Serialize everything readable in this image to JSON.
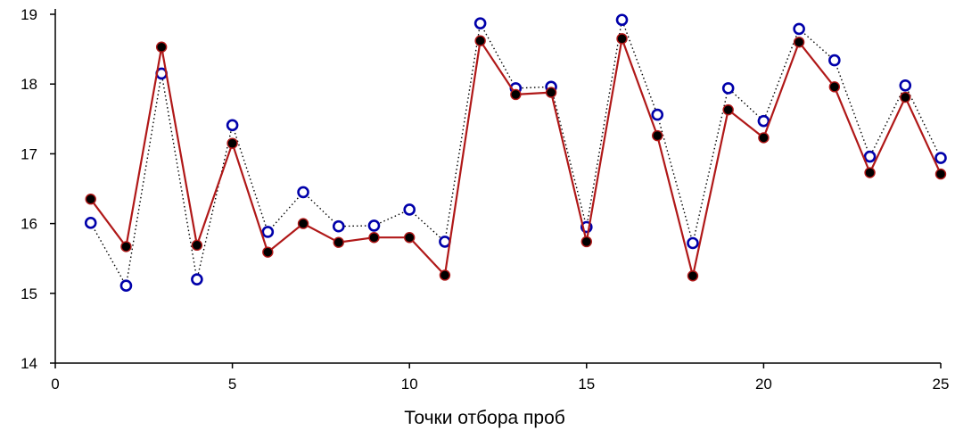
{
  "chart_data": {
    "type": "line",
    "title": "",
    "xlabel": "Точки отбора проб",
    "ylabel": "",
    "xlim": [
      0,
      25
    ],
    "ylim": [
      14,
      19
    ],
    "x_ticks": [
      0,
      5,
      10,
      15,
      20,
      25
    ],
    "y_ticks": [
      14,
      15,
      16,
      17,
      18,
      19
    ],
    "grid": false,
    "legend": "none",
    "x": [
      1,
      2,
      3,
      4,
      5,
      6,
      7,
      8,
      9,
      10,
      11,
      12,
      13,
      14,
      15,
      16,
      17,
      18,
      19,
      20,
      21,
      22,
      23,
      24,
      25
    ],
    "series": [
      {
        "line_style": "solid",
        "marker": "filled-circle",
        "line_color": "#b01818",
        "marker_color": "#000000",
        "values": [
          16.35,
          15.67,
          18.53,
          15.69,
          17.15,
          15.59,
          16.0,
          15.73,
          15.8,
          15.8,
          15.26,
          18.62,
          17.85,
          17.88,
          15.74,
          18.65,
          17.26,
          15.25,
          17.63,
          17.23,
          18.6,
          17.96,
          16.73,
          17.81,
          16.71
        ]
      },
      {
        "line_style": "dotted",
        "marker": "open-circle",
        "line_color": "#000000",
        "marker_color": "#0000aa",
        "values": [
          16.01,
          15.11,
          18.15,
          15.2,
          17.41,
          15.88,
          16.45,
          15.96,
          15.97,
          16.2,
          15.74,
          18.87,
          17.94,
          17.96,
          15.95,
          18.92,
          17.56,
          15.72,
          17.94,
          17.47,
          18.79,
          18.34,
          16.96,
          17.98,
          16.94
        ]
      }
    ]
  }
}
